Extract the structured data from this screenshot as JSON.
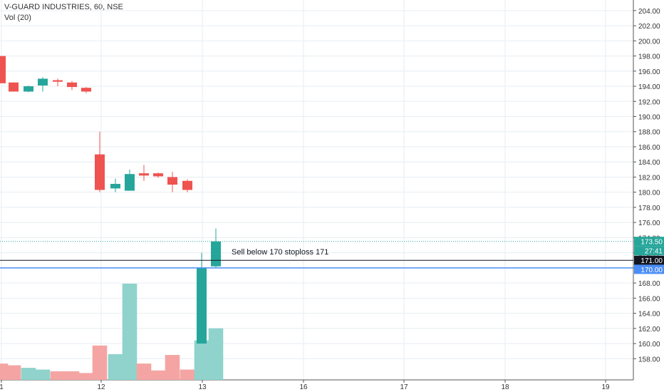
{
  "header": {
    "title": "V-GUARD INDUSTRIES, 60, NSE",
    "volume_label": "Vol (20)"
  },
  "colors": {
    "up": "#26a69a",
    "down": "#ef5350",
    "up_vol": "#8fd3cc",
    "down_vol": "#f4a5a3",
    "grid": "#e6eef3",
    "price_tag": "#26a69a",
    "blue_line": "#4a8df6",
    "black_line": "#131722"
  },
  "annotation": "Sell below 170 stoploss 171",
  "price_tags": [
    {
      "label": "173.50",
      "kind": "last-price"
    },
    {
      "label": "27:41",
      "kind": "countdown"
    },
    {
      "label": "171.00",
      "kind": "horizontal-line"
    },
    {
      "label": "170.00",
      "kind": "horizontal-line"
    }
  ],
  "chart_data": {
    "type": "candlestick",
    "title": "V-GUARD INDUSTRIES, 60, NSE",
    "ylim": [
      155.2,
      205.4
    ],
    "y_ticks": [
      "204.00",
      "202.00",
      "200.00",
      "198.00",
      "196.00",
      "194.00",
      "192.00",
      "190.00",
      "188.00",
      "186.00",
      "184.00",
      "182.00",
      "180.00",
      "178.00",
      "176.00",
      "174.00",
      "172.00",
      "170.00",
      "168.00",
      "166.00",
      "164.00",
      "162.00",
      "160.00",
      "158.00"
    ],
    "x_ticks": [
      "1",
      "12",
      "13",
      "16",
      "17",
      "18",
      "19"
    ],
    "grid": true,
    "candles": [
      {
        "open": 198.0,
        "high": 198.0,
        "low": 194.4,
        "close": 194.4,
        "volume": 19
      },
      {
        "open": 194.5,
        "high": 194.5,
        "low": 193.3,
        "close": 193.3,
        "volume": 17
      },
      {
        "open": 193.3,
        "high": 194.1,
        "low": 193.2,
        "close": 194.0,
        "volume": 14
      },
      {
        "open": 194.1,
        "high": 195.2,
        "low": 193.3,
        "close": 195.0,
        "volume": 12
      },
      {
        "open": 194.8,
        "high": 195.0,
        "low": 194.0,
        "close": 194.6,
        "volume": 10
      },
      {
        "open": 194.5,
        "high": 194.7,
        "low": 193.5,
        "close": 193.9,
        "volume": 10
      },
      {
        "open": 193.8,
        "high": 193.9,
        "low": 193.1,
        "close": 193.3,
        "volume": 8
      },
      {
        "open": 185.0,
        "high": 188.0,
        "low": 180.0,
        "close": 180.3,
        "volume": 40
      },
      {
        "open": 180.5,
        "high": 181.8,
        "low": 180.0,
        "close": 181.1,
        "volume": 30
      },
      {
        "open": 180.2,
        "high": 183.0,
        "low": 180.2,
        "close": 182.4,
        "volume": 112
      },
      {
        "open": 182.5,
        "high": 183.6,
        "low": 181.5,
        "close": 182.2,
        "volume": 19
      },
      {
        "open": 182.5,
        "high": 182.6,
        "low": 181.9,
        "close": 182.1,
        "volume": 11
      },
      {
        "open": 182.0,
        "high": 182.7,
        "low": 180.0,
        "close": 181.0,
        "volume": 29
      },
      {
        "open": 181.5,
        "high": 181.7,
        "low": 180.0,
        "close": 180.3,
        "volume": 12
      },
      {
        "open": 160.0,
        "high": 172.0,
        "low": 160.0,
        "close": 170.0,
        "volume": 46
      },
      {
        "open": 170.2,
        "high": 175.2,
        "low": 170.0,
        "close": 173.5,
        "volume": 60
      }
    ],
    "horizontal_lines": [
      171.0,
      170.0
    ],
    "last_price": 173.5
  }
}
